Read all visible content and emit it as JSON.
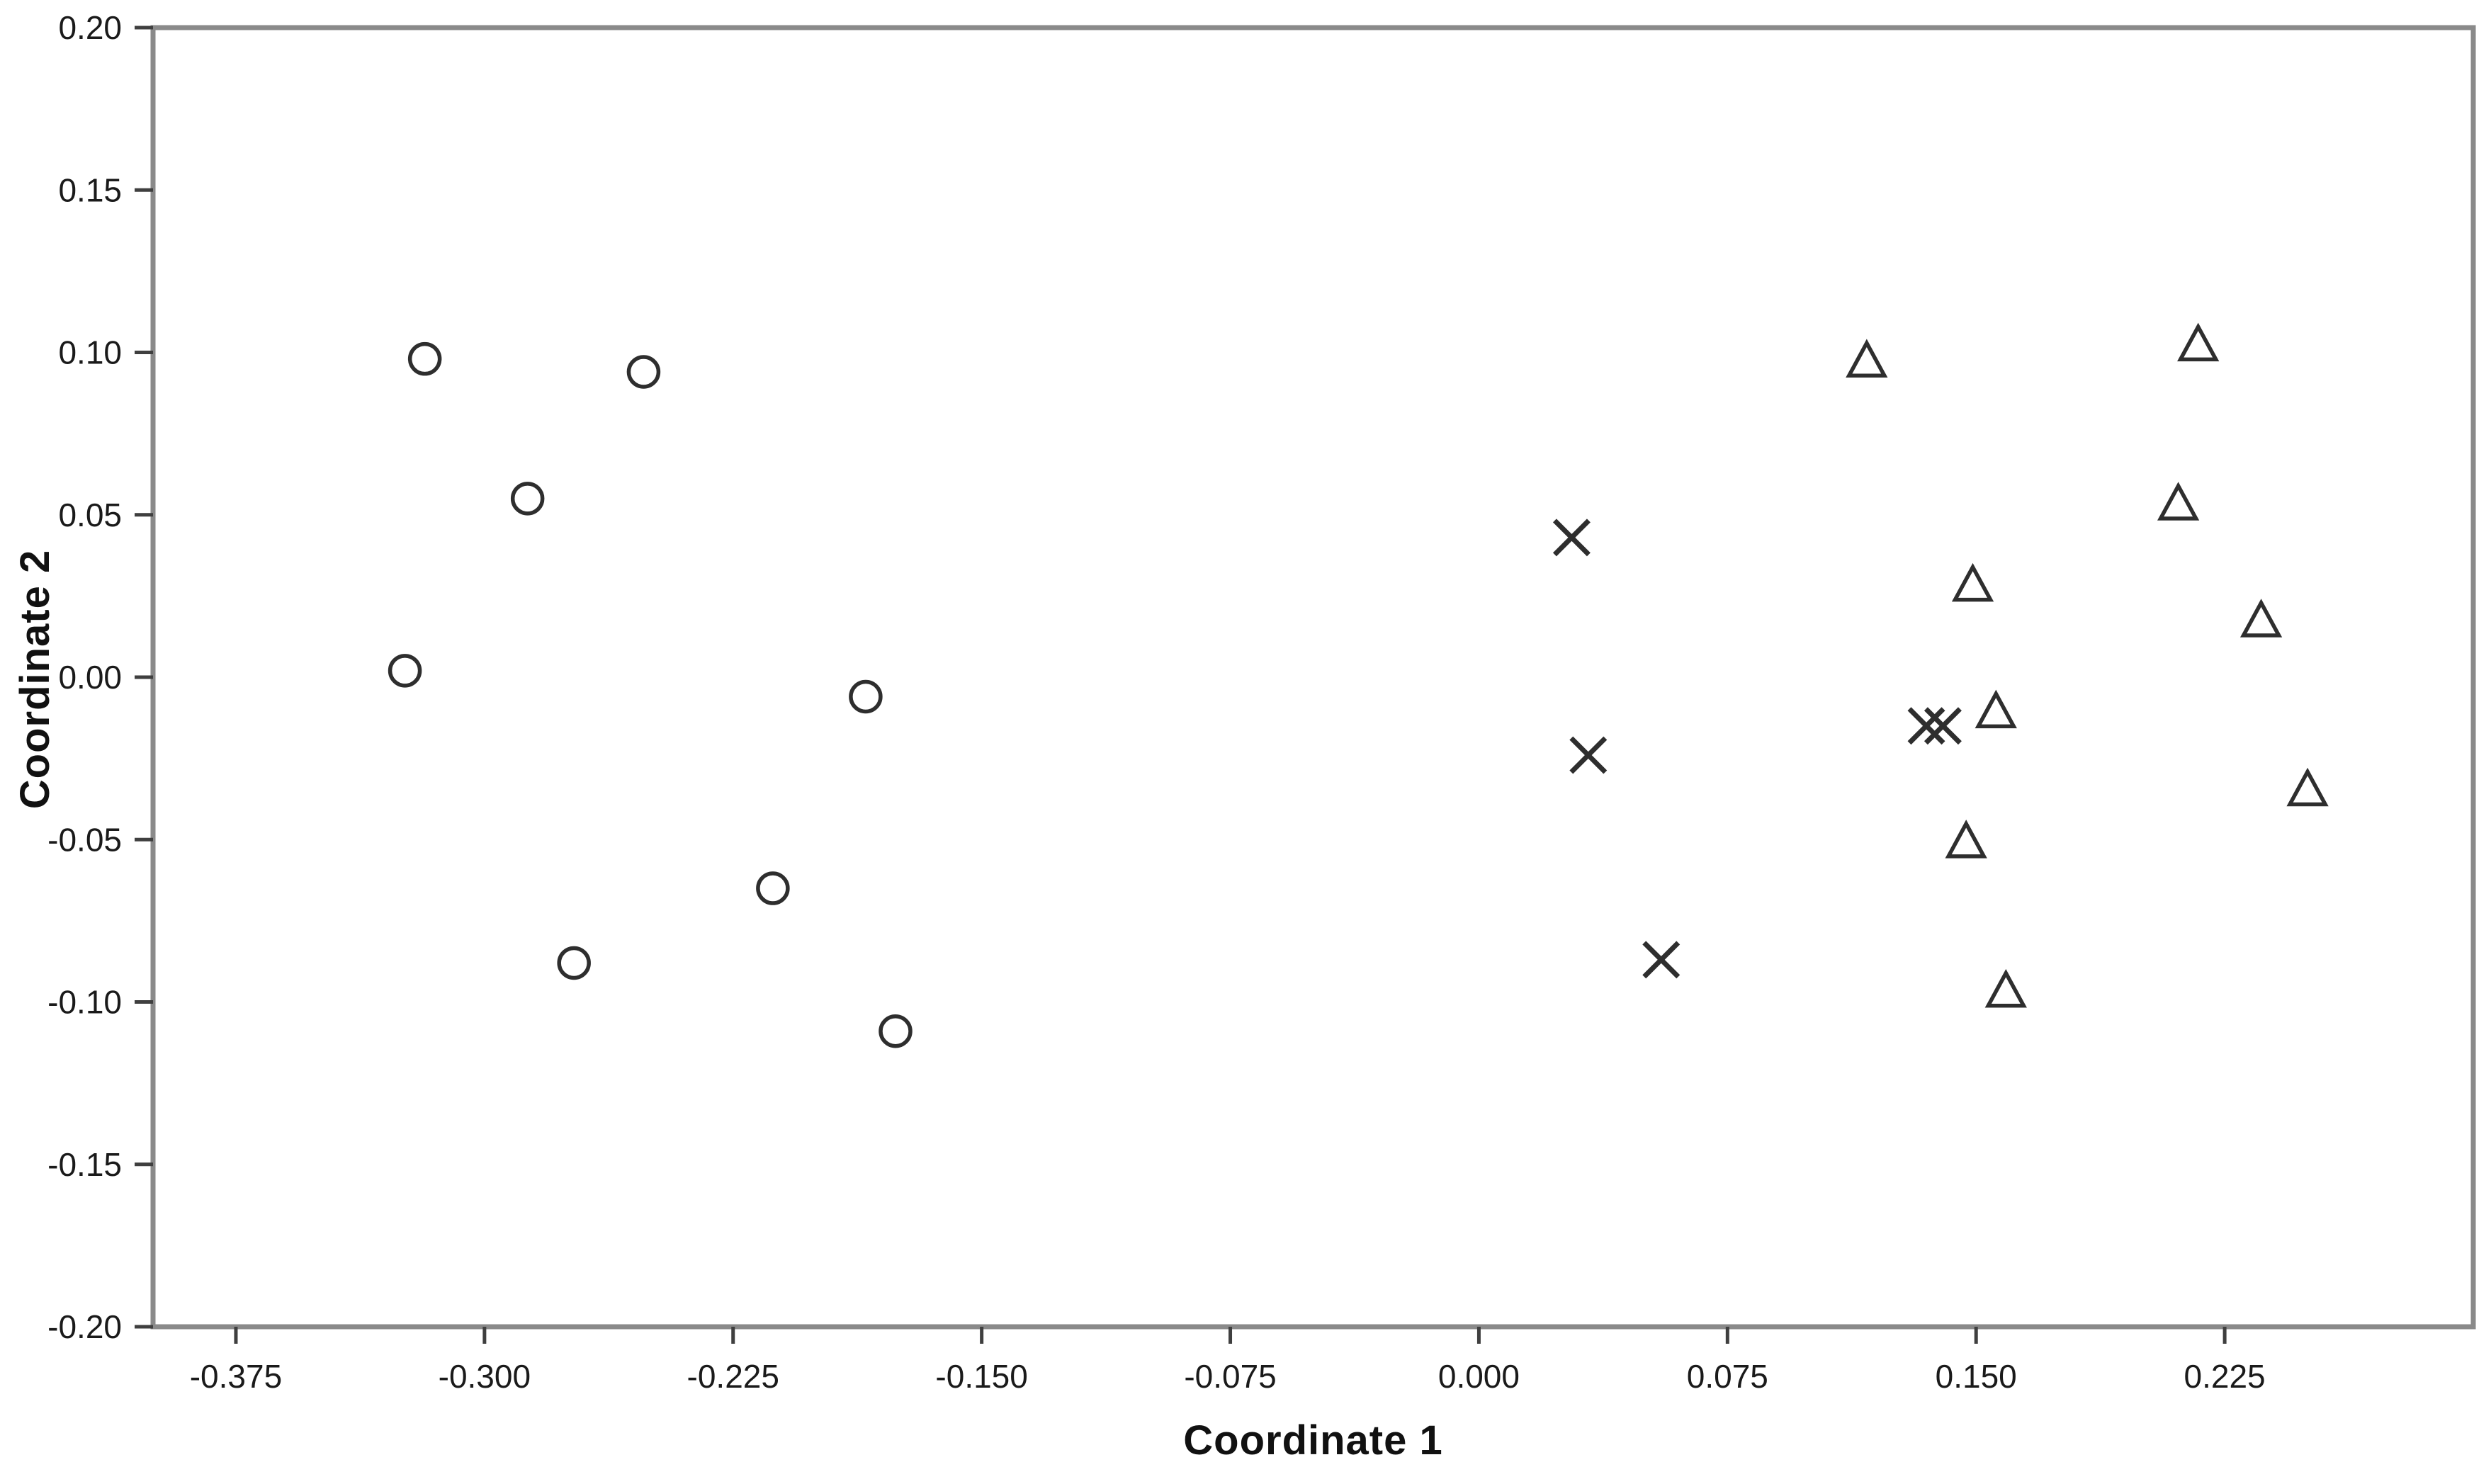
{
  "chart_data": {
    "type": "scatter",
    "title": "",
    "xlabel": "Coordinate 1",
    "ylabel": "Coordinate 2",
    "xlim": [
      -0.4,
      0.3
    ],
    "ylim": [
      -0.2,
      0.2
    ],
    "grid": false,
    "legend": "none",
    "x_ticks": [
      -0.375,
      -0.3,
      -0.225,
      -0.15,
      -0.075,
      0.0,
      0.075,
      0.15,
      0.225
    ],
    "x_tick_labels": [
      "-0.375",
      "-0.300",
      "-0.225",
      "-0.150",
      "-0.075",
      "0.000",
      "0.075",
      "0.150",
      "0.225"
    ],
    "y_ticks": [
      0.2,
      0.15,
      0.1,
      0.05,
      0.0,
      -0.05,
      -0.1,
      -0.15,
      -0.2
    ],
    "y_tick_labels": [
      "0.20",
      "0.15",
      "0.10",
      "0.05",
      "0.00",
      "-0.05",
      "-0.10",
      "-0.15",
      "-0.20"
    ],
    "series": [
      {
        "name": "circles",
        "marker": "circle",
        "points": [
          [
            -0.318,
            0.098
          ],
          [
            -0.252,
            0.094
          ],
          [
            -0.287,
            0.055
          ],
          [
            -0.324,
            0.002
          ],
          [
            -0.185,
            -0.006
          ],
          [
            -0.213,
            -0.065
          ],
          [
            -0.273,
            -0.088
          ],
          [
            -0.176,
            -0.109
          ]
        ]
      },
      {
        "name": "x-marks",
        "marker": "x",
        "points": [
          [
            0.028,
            0.043
          ],
          [
            0.033,
            -0.024
          ],
          [
            0.135,
            -0.015
          ],
          [
            0.14,
            -0.015
          ],
          [
            0.055,
            -0.087
          ]
        ]
      },
      {
        "name": "triangles",
        "marker": "triangle-up",
        "points": [
          [
            0.117,
            0.097
          ],
          [
            0.217,
            0.102
          ],
          [
            0.211,
            0.053
          ],
          [
            0.149,
            0.028
          ],
          [
            0.236,
            0.017
          ],
          [
            0.156,
            -0.011
          ],
          [
            0.25,
            -0.035
          ],
          [
            0.147,
            -0.051
          ],
          [
            0.159,
            -0.097
          ]
        ]
      }
    ],
    "colors": {
      "background": "#ffffff",
      "frame": "#8a8a8a",
      "tick": "#3f3f3f",
      "tick_text": "#1a1a1a",
      "marker": "#2e2e2e"
    }
  }
}
